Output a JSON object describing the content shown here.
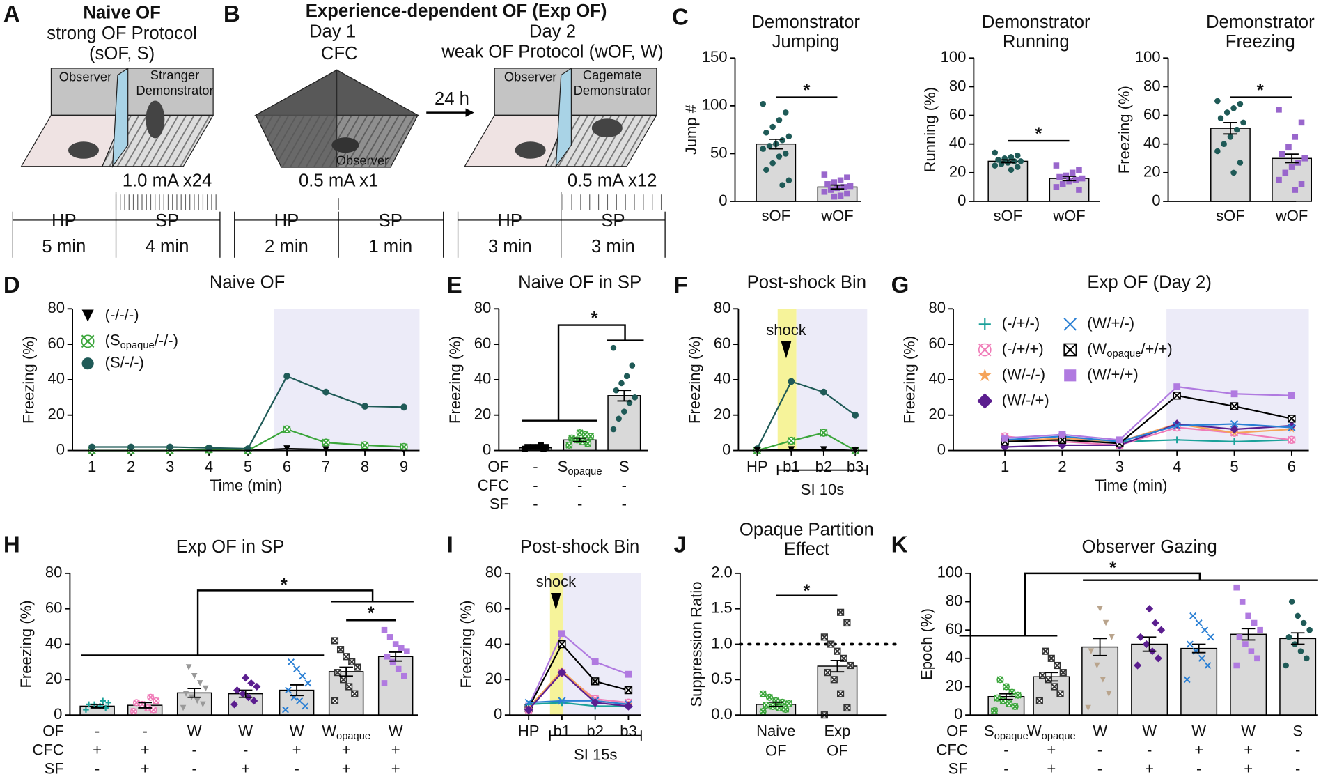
{
  "panel_labels": [
    "A",
    "B",
    "C",
    "D",
    "E",
    "F",
    "G",
    "H",
    "I",
    "J",
    "K"
  ],
  "schematic": {
    "A": {
      "title": "Naive OF",
      "protocol": "strong OF Protocol",
      "abbr": "(sOF, S)",
      "observer": "Observer",
      "demo1": "Stranger",
      "demo2": "Demonstrator",
      "shock": "1.0 mA x24",
      "phases": [
        "HP",
        "SP"
      ],
      "durations": [
        "5 min",
        "4 min"
      ]
    },
    "B": {
      "title": "Experience-dependent OF (Exp OF)",
      "day1": "Day 1",
      "cfc": "CFC",
      "observer": "Observer",
      "shock1": "0.5 mA x1",
      "phases1": [
        "HP",
        "SP"
      ],
      "durations1": [
        "2 min",
        "1 min"
      ],
      "delay": "24 h",
      "day2": "Day 2",
      "protocol": "weak OF Protocol (wOF, W)",
      "observer2": "Observer",
      "demo1": "Cagemate",
      "demo2": "Demonstrator",
      "shock2": "0.5 mA x12",
      "phases2": [
        "HP",
        "SP"
      ],
      "durations2": [
        "3 min",
        "3 min"
      ]
    }
  },
  "chart_data": [
    {
      "type": "bar",
      "title": [
        "Demonstrator",
        "Jumping"
      ],
      "ylabel": "Jump #",
      "categories": [
        "sOF",
        "wOF"
      ],
      "values": [
        60,
        15
      ],
      "errors": [
        5,
        2
      ],
      "points": [
        [
          102,
          93,
          85,
          78,
          72,
          68,
          64,
          60,
          58,
          55,
          50,
          47,
          40,
          33,
          22,
          17
        ],
        [
          28,
          25,
          22,
          20,
          18,
          16,
          15,
          14,
          12,
          10,
          8,
          6,
          5
        ]
      ],
      "point_colors": [
        "#1f5a57",
        "#9966cc"
      ],
      "markers": [
        "circle",
        "square"
      ],
      "bar_color": "#d9d9d9",
      "ylim": [
        0,
        150
      ],
      "yticks": [
        0,
        50,
        100,
        150
      ],
      "annotations": [
        "*"
      ]
    },
    {
      "type": "bar",
      "title": [
        "Demonstrator",
        "Running"
      ],
      "ylabel": "Running (%)",
      "categories": [
        "sOF",
        "wOF"
      ],
      "values": [
        28,
        16
      ],
      "errors": [
        1,
        1.5
      ],
      "points": [
        [
          34,
          32,
          31,
          30,
          29,
          28,
          28,
          27,
          26,
          25,
          24,
          22
        ],
        [
          25,
          22,
          20,
          18,
          17,
          16,
          15,
          14,
          12,
          10,
          8
        ]
      ],
      "point_colors": [
        "#1f5a57",
        "#9966cc"
      ],
      "markers": [
        "circle",
        "square"
      ],
      "bar_color": "#d9d9d9",
      "ylim": [
        0,
        100
      ],
      "yticks": [
        0,
        20,
        40,
        60,
        80,
        100
      ],
      "annotations": [
        "*"
      ]
    },
    {
      "type": "bar",
      "title": [
        "Demonstrator",
        "Freezing"
      ],
      "ylabel": "Freezing (%)",
      "categories": [
        "sOF",
        "wOF"
      ],
      "values": [
        51,
        30
      ],
      "errors": [
        4,
        3
      ],
      "points": [
        [
          70,
          68,
          65,
          62,
          58,
          55,
          50,
          45,
          40,
          35,
          27,
          20
        ],
        [
          64,
          55,
          45,
          38,
          33,
          30,
          27,
          24,
          20,
          15,
          12,
          8
        ]
      ],
      "point_colors": [
        "#1f5a57",
        "#9966cc"
      ],
      "markers": [
        "circle",
        "square"
      ],
      "bar_color": "#d9d9d9",
      "ylim": [
        0,
        100
      ],
      "yticks": [
        0,
        20,
        40,
        60,
        80,
        100
      ],
      "annotations": [
        "*"
      ]
    },
    {
      "type": "line",
      "title": "Naive OF",
      "xlabel": "Time (min)",
      "ylabel": "Freezing (%)",
      "x": [
        1,
        2,
        3,
        4,
        5,
        6,
        7,
        8,
        9
      ],
      "xlim": [
        0.5,
        9.4
      ],
      "xticks": [
        1,
        2,
        3,
        4,
        5,
        6,
        7,
        8,
        9
      ],
      "ylim": [
        0,
        80
      ],
      "yticks": [
        0,
        20,
        40,
        60,
        80
      ],
      "series": [
        {
          "name": "(-/-/-)",
          "color": "#000000",
          "marker": "triangle",
          "values": [
            0,
            0,
            0,
            0.5,
            0,
            1,
            0.5,
            0.5,
            0
          ]
        },
        {
          "name": "(Sopaque/-/-)",
          "color": "#3aa53a",
          "marker": "circlex",
          "values": [
            0,
            0,
            0,
            0.5,
            0,
            12,
            4.5,
            3,
            2
          ]
        },
        {
          "name": "(S/-/-)",
          "color": "#1f5a57",
          "marker": "circle",
          "values": [
            2,
            2,
            2,
            1.5,
            1,
            42,
            33,
            25,
            24.5
          ]
        }
      ]
    },
    {
      "type": "bar",
      "title": "Naive OF in SP",
      "ylabel": "Freezing (%)",
      "conditions": [
        {
          "label": "OF",
          "values": [
            "-",
            "Sopaque",
            "S"
          ]
        },
        {
          "label": "CFC",
          "values": [
            "-",
            "-",
            "-"
          ]
        },
        {
          "label": "SF",
          "values": [
            "-",
            "-",
            "-"
          ]
        }
      ],
      "values": [
        1.5,
        6,
        31
      ],
      "errors": [
        0.3,
        1,
        3
      ],
      "points": [
        [
          1,
          1,
          2,
          2,
          2,
          2,
          3
        ],
        [
          3,
          4,
          5,
          6,
          7,
          8,
          9,
          10
        ],
        [
          58,
          48,
          42,
          38,
          34,
          30,
          27,
          22,
          18,
          12
        ]
      ],
      "point_colors": [
        "#000000",
        "#3aa53a",
        "#1f5a57"
      ],
      "markers": [
        "square",
        "circlex",
        "circle"
      ],
      "bar_color": "#d9d9d9",
      "ylim": [
        0,
        80
      ],
      "yticks": [
        0,
        20,
        40,
        60,
        80
      ],
      "annotations": [
        "*"
      ]
    },
    {
      "type": "line",
      "title": "Post-shock Bin",
      "ylabel": "Freezing (%)",
      "categories": [
        "HP",
        "b1",
        "b2",
        "b3"
      ],
      "ylim": [
        0,
        80
      ],
      "yticks": [
        0,
        20,
        40,
        60,
        80
      ],
      "series": [
        {
          "color": "#1f5a57",
          "marker": "circle",
          "values": [
            1,
            39,
            33,
            20
          ]
        },
        {
          "color": "#3aa53a",
          "marker": "circlex",
          "values": [
            0,
            5.5,
            10,
            0
          ]
        },
        {
          "color": "#000000",
          "marker": "triangle",
          "values": [
            0,
            0.5,
            0.5,
            0
          ]
        }
      ],
      "annotations": [
        "shock"
      ],
      "bracket_label": "SI 10s"
    },
    {
      "type": "line",
      "title": "Exp OF (Day 2)",
      "xlabel": "Time (min)",
      "ylabel": "Freezing (%)",
      "x": [
        1,
        2,
        3,
        4,
        5,
        6
      ],
      "xlim": [
        0.1,
        6.3
      ],
      "xticks": [
        1,
        2,
        3,
        4,
        5,
        6
      ],
      "ylim": [
        0,
        80
      ],
      "yticks": [
        0,
        20,
        40,
        60,
        80
      ],
      "series": [
        {
          "name": "(-/+/-)",
          "color": "#1aa19a",
          "marker": "plus",
          "values": [
            6,
            6,
            5,
            6,
            5,
            6
          ]
        },
        {
          "name": "(-/+/+)",
          "color": "#f07cb8",
          "marker": "circlex",
          "values": [
            8,
            5,
            3,
            13,
            10,
            6
          ]
        },
        {
          "name": "(W/-/-)",
          "color": "#f5a35a",
          "marker": "star",
          "values": [
            5,
            7,
            5,
            15,
            10,
            12
          ]
        },
        {
          "name": "(W/-/+)",
          "color": "#5b1e8f",
          "marker": "diamond",
          "values": [
            2,
            3,
            3,
            15,
            12,
            14
          ]
        },
        {
          "name": "(W/+/-)",
          "color": "#2a7fd4",
          "marker": "x",
          "values": [
            6,
            8,
            5,
            14,
            15,
            13
          ]
        },
        {
          "name": "(Wopaque/+/+)",
          "color": "#000000",
          "marker": "boxx",
          "values": [
            5,
            6,
            4,
            31,
            25,
            18
          ]
        },
        {
          "name": "(W/+/+)",
          "color": "#b07ae0",
          "marker": "square",
          "values": [
            7,
            9,
            6,
            36,
            32,
            31
          ]
        }
      ]
    },
    {
      "type": "bar",
      "title": "Exp OF in SP",
      "ylabel": "Freezing (%)",
      "conditions": [
        {
          "label": "OF",
          "values": [
            "-",
            "-",
            "W",
            "W",
            "W",
            "Wopaque",
            "W"
          ]
        },
        {
          "label": "CFC",
          "values": [
            "+",
            "+",
            "-",
            "-",
            "+",
            "+",
            "+"
          ]
        },
        {
          "label": "SF",
          "values": [
            "-",
            "+",
            "-",
            "+",
            "-",
            "+",
            "+"
          ]
        }
      ],
      "values": [
        5,
        5.5,
        12.5,
        12,
        14,
        24.5,
        33
      ],
      "errors": [
        1,
        1.5,
        2.5,
        2,
        3,
        2.5,
        2.5
      ],
      "points": [
        [
          3,
          4,
          5,
          6,
          6,
          7,
          8
        ],
        [
          2,
          3,
          4,
          6,
          7,
          8,
          10
        ],
        [
          4,
          6,
          8,
          10,
          12,
          15,
          18,
          22,
          27
        ],
        [
          6,
          8,
          10,
          12,
          14,
          16,
          18,
          21
        ],
        [
          3,
          5,
          8,
          10,
          14,
          18,
          22,
          26,
          30
        ],
        [
          8,
          12,
          16,
          20,
          24,
          27,
          30,
          33,
          37,
          42
        ],
        [
          18,
          22,
          26,
          30,
          33,
          36,
          38,
          40,
          44,
          48
        ]
      ],
      "point_colors": [
        "#1aa19a",
        "#f07cb8",
        "#999999",
        "#5b1e8f",
        "#2a7fd4",
        "#333333",
        "#b07ae0"
      ],
      "markers": [
        "plus",
        "circlex",
        "triangle",
        "diamond",
        "x",
        "boxx",
        "square"
      ],
      "bar_color": "#d9d9d9",
      "ylim": [
        0,
        80
      ],
      "yticks": [
        0,
        20,
        40,
        60,
        80
      ],
      "annotations": [
        "*",
        "*"
      ]
    },
    {
      "type": "line",
      "title": "Post-shock Bin",
      "ylabel": "Freezing (%)",
      "categories": [
        "HP",
        "b1",
        "b2",
        "b3"
      ],
      "ylim": [
        0,
        80
      ],
      "yticks": [
        0,
        20,
        40,
        60,
        80
      ],
      "series": [
        {
          "color": "#b07ae0",
          "marker": "square",
          "values": [
            5,
            46,
            30,
            23
          ]
        },
        {
          "color": "#000000",
          "marker": "boxx",
          "values": [
            4,
            40,
            19,
            14
          ]
        },
        {
          "color": "#f07cb8",
          "marker": "circlex",
          "values": [
            3,
            24,
            9,
            7
          ]
        },
        {
          "color": "#f5a35a",
          "marker": "star",
          "values": [
            4,
            25,
            8,
            6
          ]
        },
        {
          "color": "#1aa19a",
          "marker": "plus",
          "values": [
            6,
            7,
            5,
            5
          ]
        },
        {
          "color": "#2a7fd4",
          "marker": "x",
          "values": [
            7,
            8,
            8,
            6
          ]
        },
        {
          "color": "#5b1e8f",
          "marker": "diamond",
          "values": [
            3,
            24,
            7,
            5
          ]
        }
      ],
      "annotations": [
        "shock"
      ],
      "bracket_label": "SI 15s"
    },
    {
      "type": "bar",
      "title": [
        "Opaque Partition",
        "Effect"
      ],
      "ylabel": "Suppression Ratio",
      "categories": [
        [
          "Naive",
          "OF"
        ],
        [
          "Exp",
          "OF"
        ]
      ],
      "values": [
        0.15,
        0.69
      ],
      "errors": [
        0.03,
        0.08
      ],
      "points": [
        [
          0.05,
          0.08,
          0.1,
          0.12,
          0.14,
          0.16,
          0.18,
          0.2,
          0.25,
          0.3
        ],
        [
          0.0,
          0.1,
          0.3,
          0.5,
          0.6,
          0.7,
          0.8,
          0.9,
          1.0,
          1.1,
          1.3,
          1.45
        ]
      ],
      "point_colors": [
        "#3aa53a",
        "#333333"
      ],
      "markers": [
        "circlex",
        "boxx"
      ],
      "bar_color": "#d9d9d9",
      "ylim": [
        0,
        2
      ],
      "yticks": [
        {
          "value": 0,
          "label": "0.0"
        },
        0.5,
        {
          "value": 1,
          "label": "1.0"
        },
        1.5,
        {
          "value": 2,
          "label": "2.0"
        }
      ],
      "reference_line": 1,
      "annotations": [
        "*"
      ]
    },
    {
      "type": "bar",
      "title": "Observer Gazing",
      "ylabel": "Epoch (%)",
      "conditions": [
        {
          "label": "OF",
          "values": [
            "Sopaque",
            "Wopaque",
            "W",
            "W",
            "W",
            "W",
            "S"
          ]
        },
        {
          "label": "CFC",
          "values": [
            "-",
            "+",
            "-",
            "-",
            "+",
            "+",
            "-"
          ]
        },
        {
          "label": "SF",
          "values": [
            "-",
            "+",
            "-",
            "+",
            "-",
            "+",
            "-"
          ]
        }
      ],
      "values": [
        13,
        27,
        48,
        50,
        47,
        57,
        54
      ],
      "errors": [
        2,
        3,
        6,
        5,
        3,
        4,
        4
      ],
      "points": [
        [
          3,
          6,
          8,
          10,
          12,
          14,
          16,
          20,
          25
        ],
        [
          10,
          15,
          20,
          25,
          28,
          30,
          35,
          40,
          45
        ],
        [
          5,
          15,
          25,
          35,
          45,
          55,
          65,
          75
        ],
        [
          35,
          40,
          45,
          50,
          55,
          60,
          65,
          75
        ],
        [
          25,
          35,
          40,
          45,
          50,
          55,
          60,
          65,
          70
        ],
        [
          35,
          40,
          45,
          50,
          55,
          60,
          65,
          70,
          80,
          90
        ],
        [
          35,
          40,
          45,
          50,
          55,
          60,
          65,
          70,
          80
        ]
      ],
      "point_colors": [
        "#3aa53a",
        "#333333",
        "#b9a48c",
        "#5b1e8f",
        "#2a7fd4",
        "#b07ae0",
        "#1f5a57"
      ],
      "markers": [
        "circlex",
        "boxx",
        "triangle",
        "diamond",
        "x",
        "square",
        "circle"
      ],
      "bar_color": "#d9d9d9",
      "ylim": [
        0,
        100
      ],
      "yticks": [
        0,
        20,
        40,
        60,
        80,
        100
      ],
      "annotations": [
        "*"
      ]
    }
  ]
}
